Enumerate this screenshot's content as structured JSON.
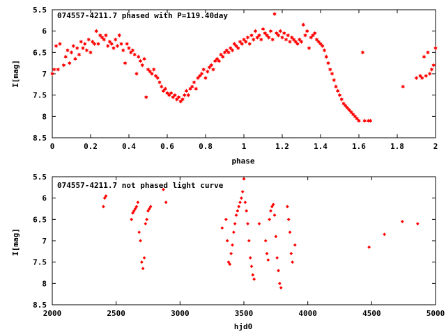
{
  "chart_data": [
    {
      "type": "scatter",
      "title": "074557-4211.7 phased with P=119.40day",
      "xlabel": "phase",
      "ylabel": "I[mag]",
      "xlim": [
        0,
        2
      ],
      "ylim": [
        8.5,
        5.5
      ],
      "y_inverted": true,
      "x_ticks": [
        "0",
        "0.2",
        "0.4",
        "0.6",
        "0.8",
        "1",
        "1.2",
        "1.4",
        "1.6",
        "1.8",
        "2"
      ],
      "y_ticks": [
        "5.5",
        "6",
        "6.5",
        "7",
        "7.5",
        "8",
        "8.5"
      ],
      "marker": "star",
      "color": "#ff0000",
      "points": [
        [
          0.0,
          7.0
        ],
        [
          0.01,
          6.9
        ],
        [
          0.02,
          6.35
        ],
        [
          0.03,
          6.9
        ],
        [
          0.04,
          6.3
        ],
        [
          0.06,
          6.8
        ],
        [
          0.07,
          6.6
        ],
        [
          0.08,
          6.45
        ],
        [
          0.09,
          6.75
        ],
        [
          0.1,
          6.5
        ],
        [
          0.11,
          6.35
        ],
        [
          0.12,
          6.65
        ],
        [
          0.13,
          6.4
        ],
        [
          0.14,
          6.55
        ],
        [
          0.15,
          6.25
        ],
        [
          0.16,
          6.4
        ],
        [
          0.17,
          6.3
        ],
        [
          0.18,
          6.45
        ],
        [
          0.19,
          6.2
        ],
        [
          0.2,
          6.5
        ],
        [
          0.21,
          6.25
        ],
        [
          0.22,
          6.3
        ],
        [
          0.23,
          6.0
        ],
        [
          0.24,
          6.3
        ],
        [
          0.25,
          6.1
        ],
        [
          0.26,
          6.15
        ],
        [
          0.27,
          6.2
        ],
        [
          0.28,
          6.1
        ],
        [
          0.29,
          6.35
        ],
        [
          0.3,
          6.25
        ],
        [
          0.31,
          6.3
        ],
        [
          0.32,
          6.4
        ],
        [
          0.33,
          6.2
        ],
        [
          0.34,
          6.35
        ],
        [
          0.35,
          6.1
        ],
        [
          0.36,
          6.3
        ],
        [
          0.37,
          6.45
        ],
        [
          0.38,
          6.75
        ],
        [
          0.39,
          6.3
        ],
        [
          0.4,
          6.4
        ],
        [
          0.41,
          6.5
        ],
        [
          0.42,
          6.45
        ],
        [
          0.43,
          6.55
        ],
        [
          0.44,
          7.0
        ],
        [
          0.45,
          6.6
        ],
        [
          0.46,
          6.7
        ],
        [
          0.47,
          6.8
        ],
        [
          0.48,
          6.65
        ],
        [
          0.49,
          7.55
        ],
        [
          0.5,
          6.9
        ],
        [
          0.51,
          6.95
        ],
        [
          0.52,
          7.0
        ],
        [
          0.53,
          6.9
        ],
        [
          0.54,
          7.05
        ],
        [
          0.55,
          7.1
        ],
        [
          0.56,
          7.2
        ],
        [
          0.57,
          7.3
        ],
        [
          0.58,
          7.4
        ],
        [
          0.59,
          7.35
        ],
        [
          0.6,
          7.45
        ],
        [
          0.61,
          7.5
        ],
        [
          0.62,
          7.45
        ],
        [
          0.63,
          7.55
        ],
        [
          0.64,
          7.5
        ],
        [
          0.65,
          7.6
        ],
        [
          0.66,
          7.55
        ],
        [
          0.67,
          7.65
        ],
        [
          0.68,
          7.6
        ],
        [
          0.69,
          7.5
        ],
        [
          0.7,
          7.4
        ],
        [
          0.71,
          7.5
        ],
        [
          0.72,
          7.35
        ],
        [
          0.73,
          7.3
        ],
        [
          0.74,
          7.2
        ],
        [
          0.75,
          7.35
        ],
        [
          0.76,
          7.1
        ],
        [
          0.77,
          7.05
        ],
        [
          0.78,
          7.0
        ],
        [
          0.79,
          6.9
        ],
        [
          0.8,
          7.1
        ],
        [
          0.81,
          6.95
        ],
        [
          0.82,
          6.85
        ],
        [
          0.83,
          6.8
        ],
        [
          0.84,
          6.9
        ],
        [
          0.85,
          6.7
        ],
        [
          0.86,
          6.65
        ],
        [
          0.87,
          6.7
        ],
        [
          0.88,
          6.55
        ],
        [
          0.89,
          6.6
        ],
        [
          0.9,
          6.5
        ],
        [
          0.91,
          6.45
        ],
        [
          0.92,
          6.5
        ],
        [
          0.93,
          6.4
        ],
        [
          0.94,
          6.45
        ],
        [
          0.95,
          6.3
        ],
        [
          0.96,
          6.35
        ],
        [
          0.97,
          6.4
        ],
        [
          0.98,
          6.25
        ],
        [
          0.99,
          6.3
        ],
        [
          1.0,
          6.2
        ],
        [
          1.01,
          6.25
        ],
        [
          1.02,
          6.15
        ],
        [
          1.03,
          6.3
        ],
        [
          1.04,
          6.1
        ],
        [
          1.05,
          6.2
        ],
        [
          1.06,
          6.0
        ],
        [
          1.07,
          6.15
        ],
        [
          1.08,
          6.1
        ],
        [
          1.09,
          6.2
        ],
        [
          1.1,
          5.95
        ],
        [
          1.11,
          6.05
        ],
        [
          1.12,
          6.1
        ],
        [
          1.13,
          6.15
        ],
        [
          1.14,
          6.0
        ],
        [
          1.15,
          6.2
        ],
        [
          1.16,
          5.6
        ],
        [
          1.17,
          6.05
        ],
        [
          1.18,
          6.1
        ],
        [
          1.19,
          6.0
        ],
        [
          1.2,
          6.15
        ],
        [
          1.21,
          6.05
        ],
        [
          1.22,
          6.2
        ],
        [
          1.23,
          6.1
        ],
        [
          1.24,
          6.25
        ],
        [
          1.25,
          6.15
        ],
        [
          1.26,
          6.2
        ],
        [
          1.27,
          6.25
        ],
        [
          1.28,
          6.3
        ],
        [
          1.29,
          6.2
        ],
        [
          1.3,
          6.25
        ],
        [
          1.31,
          5.85
        ],
        [
          1.32,
          6.1
        ],
        [
          1.33,
          6.0
        ],
        [
          1.34,
          6.4
        ],
        [
          1.35,
          6.15
        ],
        [
          1.36,
          6.1
        ],
        [
          1.37,
          6.05
        ],
        [
          1.38,
          6.2
        ],
        [
          1.39,
          6.25
        ],
        [
          1.4,
          6.3
        ],
        [
          1.41,
          6.35
        ],
        [
          1.42,
          6.45
        ],
        [
          1.43,
          6.6
        ],
        [
          1.44,
          6.75
        ],
        [
          1.45,
          6.9
        ],
        [
          1.46,
          7.0
        ],
        [
          1.47,
          7.15
        ],
        [
          1.48,
          7.3
        ],
        [
          1.49,
          7.4
        ],
        [
          1.5,
          7.5
        ],
        [
          1.51,
          7.6
        ],
        [
          1.52,
          7.7
        ],
        [
          1.53,
          7.75
        ],
        [
          1.54,
          7.8
        ],
        [
          1.55,
          7.85
        ],
        [
          1.56,
          7.9
        ],
        [
          1.57,
          7.95
        ],
        [
          1.58,
          8.0
        ],
        [
          1.59,
          8.05
        ],
        [
          1.6,
          8.1
        ],
        [
          1.62,
          6.5
        ],
        [
          1.63,
          8.1
        ],
        [
          1.65,
          8.1
        ],
        [
          1.66,
          8.1
        ],
        [
          1.83,
          7.3
        ],
        [
          1.9,
          7.1
        ],
        [
          1.92,
          7.05
        ],
        [
          1.93,
          7.1
        ],
        [
          1.94,
          6.6
        ],
        [
          1.95,
          7.05
        ],
        [
          1.96,
          6.5
        ],
        [
          1.97,
          7.0
        ],
        [
          1.98,
          6.9
        ],
        [
          1.99,
          6.8
        ],
        [
          2.0,
          6.4
        ]
      ]
    },
    {
      "type": "scatter",
      "title": "074557-4211.7 not phased light curve",
      "xlabel": "hjd0",
      "ylabel": "I[mag]",
      "xlim": [
        2000,
        5000
      ],
      "ylim": [
        8.5,
        5.5
      ],
      "y_inverted": true,
      "x_ticks": [
        "2000",
        "2500",
        "3000",
        "3500",
        "4000",
        "4500",
        "5000"
      ],
      "y_ticks": [
        "5.5",
        "6",
        "6.5",
        "7",
        "7.5",
        "8",
        "8.5"
      ],
      "marker": "diamond",
      "color": "#ff0000",
      "points": [
        [
          2400,
          6.2
        ],
        [
          2410,
          6.0
        ],
        [
          2420,
          5.95
        ],
        [
          2620,
          6.5
        ],
        [
          2630,
          6.35
        ],
        [
          2640,
          6.3
        ],
        [
          2650,
          6.25
        ],
        [
          2660,
          6.2
        ],
        [
          2670,
          6.1
        ],
        [
          2680,
          6.8
        ],
        [
          2690,
          7.0
        ],
        [
          2700,
          7.5
        ],
        [
          2710,
          7.65
        ],
        [
          2720,
          7.4
        ],
        [
          2730,
          6.6
        ],
        [
          2740,
          6.5
        ],
        [
          2750,
          6.3
        ],
        [
          2760,
          6.25
        ],
        [
          2770,
          6.2
        ],
        [
          2870,
          5.8
        ],
        [
          2890,
          6.1
        ],
        [
          3330,
          6.7
        ],
        [
          3360,
          6.5
        ],
        [
          3370,
          7.0
        ],
        [
          3380,
          7.5
        ],
        [
          3390,
          7.55
        ],
        [
          3400,
          7.3
        ],
        [
          3410,
          7.1
        ],
        [
          3420,
          6.8
        ],
        [
          3430,
          6.6
        ],
        [
          3440,
          6.4
        ],
        [
          3450,
          6.3
        ],
        [
          3460,
          6.2
        ],
        [
          3470,
          6.1
        ],
        [
          3480,
          6.0
        ],
        [
          3490,
          5.85
        ],
        [
          3500,
          5.55
        ],
        [
          3510,
          6.1
        ],
        [
          3520,
          6.3
        ],
        [
          3530,
          6.6
        ],
        [
          3540,
          7.0
        ],
        [
          3550,
          7.4
        ],
        [
          3560,
          7.6
        ],
        [
          3570,
          7.8
        ],
        [
          3580,
          7.9
        ],
        [
          3620,
          6.6
        ],
        [
          3670,
          7.0
        ],
        [
          3680,
          7.3
        ],
        [
          3690,
          7.45
        ],
        [
          3700,
          6.5
        ],
        [
          3710,
          6.3
        ],
        [
          3720,
          6.2
        ],
        [
          3730,
          6.15
        ],
        [
          3740,
          6.4
        ],
        [
          3750,
          6.9
        ],
        [
          3760,
          7.4
        ],
        [
          3770,
          7.7
        ],
        [
          3780,
          8.0
        ],
        [
          3790,
          8.1
        ],
        [
          3840,
          6.2
        ],
        [
          3850,
          6.5
        ],
        [
          3860,
          6.8
        ],
        [
          3870,
          7.3
        ],
        [
          3880,
          7.5
        ],
        [
          3900,
          7.1
        ],
        [
          4480,
          7.15
        ],
        [
          4600,
          6.85
        ],
        [
          4740,
          6.55
        ],
        [
          4860,
          6.6
        ]
      ]
    }
  ]
}
